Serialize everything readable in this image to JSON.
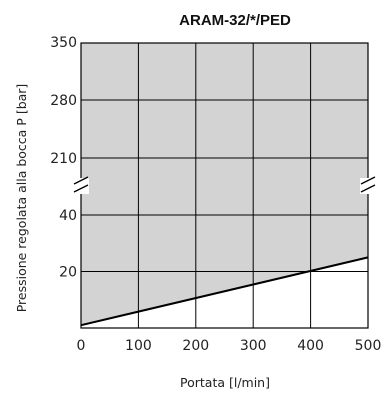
{
  "chart_data": {
    "type": "area",
    "title": "ARAM-32/*/PED",
    "xlabel": "Portata [l/min]",
    "ylabel": "Pressione regolata alla bocca P [bar]",
    "xlim": [
      0,
      500
    ],
    "x_ticks": [
      "0",
      "100",
      "200",
      "300",
      "400",
      "500"
    ],
    "y_ticks_lower": [
      "20",
      "40"
    ],
    "y_ticks_upper": [
      "210",
      "280",
      "350"
    ],
    "y_axis_break": "between 40 and 210 bar",
    "grid": true,
    "shaded_region": "between minimum-pressure line and 350 bar",
    "series": [
      {
        "x": [
          0,
          500
        ],
        "y": [
          1,
          25
        ]
      }
    ],
    "colors": {
      "fill": "#d3d3d3",
      "line": "#000000",
      "grid": "#000000"
    }
  }
}
